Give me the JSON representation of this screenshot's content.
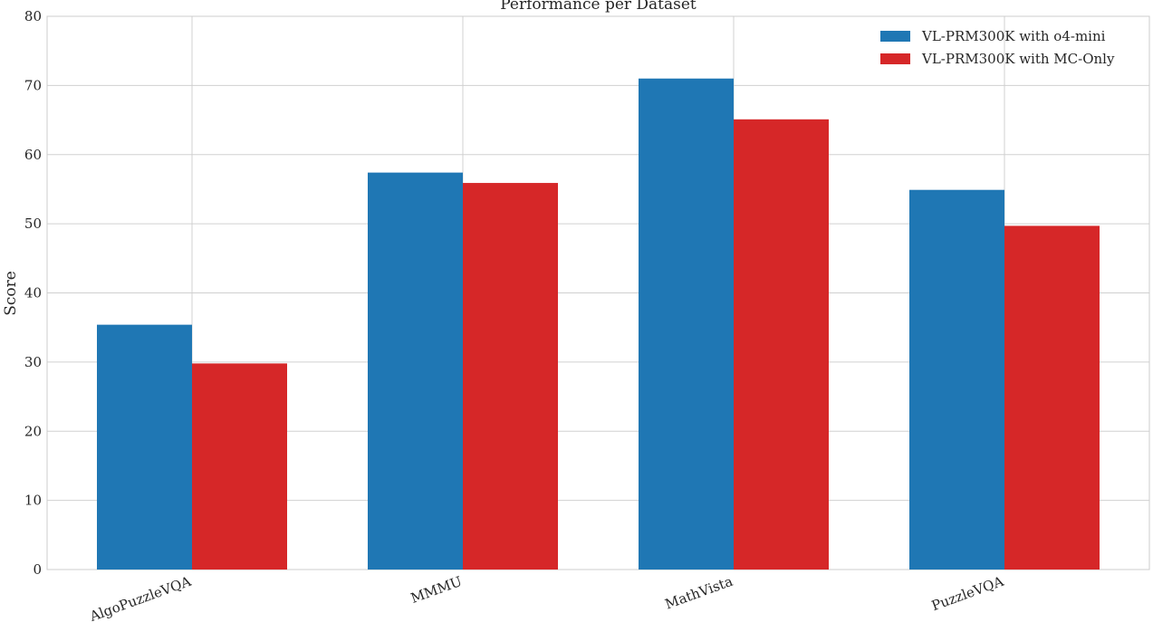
{
  "chart_data": {
    "type": "bar",
    "title": "Performance per Dataset",
    "xlabel": "",
    "ylabel": "Score",
    "ylim": [
      0,
      80
    ],
    "yticks": [
      0,
      10,
      20,
      30,
      40,
      50,
      60,
      70,
      80
    ],
    "categories": [
      "AlgoPuzzleVQA",
      "MMMU",
      "MathVista",
      "PuzzleVQA"
    ],
    "series": [
      {
        "name": "VL-PRM300K with o4-mini",
        "color": "#1f77b4",
        "values": [
          35.4,
          57.4,
          71.0,
          54.9
        ]
      },
      {
        "name": "VL-PRM300K with MC-Only",
        "color": "#d62728",
        "values": [
          29.8,
          55.9,
          65.1,
          49.7
        ]
      }
    ],
    "grid": true,
    "legend_position": "top-right"
  }
}
